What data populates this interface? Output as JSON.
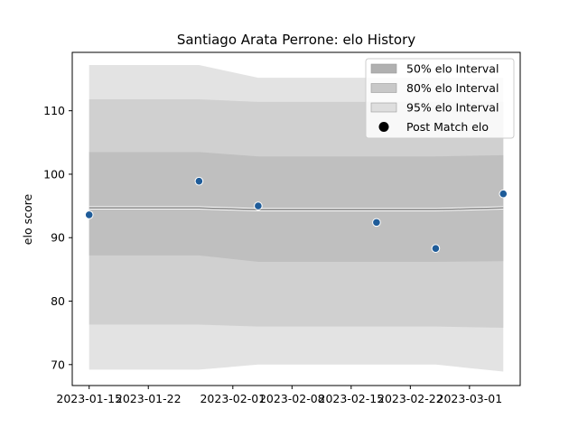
{
  "chart_data": {
    "type": "line",
    "title": "Santiago Arata Perrone: elo History",
    "xlabel": "",
    "ylabel": "elo score",
    "xlim": [
      "2023-01-13",
      "2023-03-07"
    ],
    "ylim": [
      66.7,
      119.2
    ],
    "x_ticks": [
      "2023-01-15",
      "2023-01-22",
      "2023-02-01",
      "2023-02-08",
      "2023-02-15",
      "2023-02-22",
      "2023-03-01"
    ],
    "y_ticks": [
      70,
      80,
      90,
      100,
      110
    ],
    "dates": [
      "2023-01-15",
      "2023-01-28",
      "2023-02-04",
      "2023-02-18",
      "2023-02-25",
      "2023-03-05"
    ],
    "bands": [
      {
        "name": "95% elo Interval",
        "color": "#e3e3e3",
        "lower": [
          69.2,
          69.2,
          70.0,
          70.0,
          70.0,
          68.9
        ],
        "upper": [
          117.2,
          117.2,
          115.2,
          115.2,
          115.2,
          115.2
        ]
      },
      {
        "name": "80% elo Interval",
        "color": "#d0d0d0",
        "lower": [
          76.3,
          76.3,
          76.0,
          76.0,
          76.0,
          75.8
        ],
        "upper": [
          111.8,
          111.8,
          111.4,
          111.4,
          111.4,
          111.4
        ]
      },
      {
        "name": "50% elo Interval",
        "color": "#bfbfbf",
        "lower": [
          87.2,
          87.2,
          86.2,
          86.2,
          86.2,
          86.3
        ],
        "upper": [
          103.5,
          103.5,
          102.8,
          102.8,
          102.8,
          103.0
        ]
      }
    ],
    "mean_line": [
      94.7,
      94.7,
      94.4,
      94.4,
      94.4,
      94.7
    ],
    "series": [
      {
        "name": "Post Match elo",
        "dates": [
          "2023-01-15",
          "2023-01-28",
          "2023-02-04",
          "2023-02-18",
          "2023-02-25",
          "2023-03-05"
        ],
        "values": [
          93.6,
          98.9,
          95.0,
          92.4,
          88.3,
          96.9
        ],
        "color": "#1f5c99"
      }
    ],
    "legend": {
      "placement": "top-right",
      "items": [
        {
          "label": "50% elo Interval",
          "color": "#b0b0b0",
          "kind": "patch"
        },
        {
          "label": "80% elo Interval",
          "color": "#c8c8c8",
          "kind": "patch"
        },
        {
          "label": "95% elo Interval",
          "color": "#dedede",
          "kind": "patch"
        },
        {
          "label": "Post Match elo",
          "color": "#000000",
          "kind": "dot"
        }
      ]
    },
    "grid": false
  }
}
